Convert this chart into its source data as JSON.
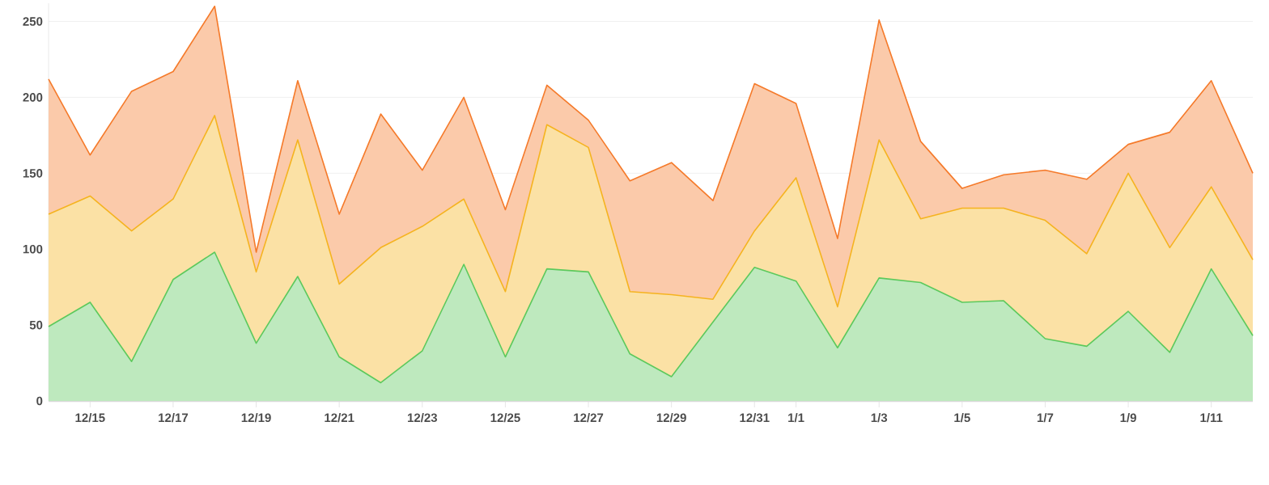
{
  "chart_data": {
    "type": "area",
    "stacked": true,
    "grid": "y",
    "categories": [
      null,
      "12/15",
      null,
      "12/17",
      null,
      "12/19",
      null,
      "12/21",
      null,
      "12/23",
      null,
      "12/25",
      null,
      "12/27",
      null,
      "12/29",
      null,
      "12/31",
      "1/1",
      null,
      "1/3",
      null,
      "1/5",
      null,
      "1/7",
      null,
      "1/9",
      null,
      "1/11",
      null
    ],
    "ylim": [
      0,
      262
    ],
    "yticks": [
      0,
      50,
      100,
      150,
      200,
      250
    ],
    "series": [
      {
        "color": "#5cc95c",
        "values": [
          49,
          65,
          26,
          80,
          98,
          38,
          82,
          29,
          12,
          33,
          90,
          29,
          87,
          85,
          31,
          16,
          52,
          88,
          79,
          35,
          81,
          78,
          65,
          66,
          41,
          36,
          59,
          32,
          87,
          43
        ]
      },
      {
        "color": "#f5b31f",
        "values": [
          74,
          70,
          86,
          53,
          90,
          47,
          90,
          48,
          89,
          82,
          43,
          43,
          95,
          82,
          41,
          54,
          15,
          24,
          68,
          27,
          91,
          42,
          62,
          61,
          78,
          61,
          91,
          69,
          54,
          50
        ]
      },
      {
        "color": "#f57a2a",
        "values": [
          89,
          27,
          92,
          84,
          72,
          13,
          39,
          46,
          88,
          37,
          67,
          54,
          26,
          18,
          73,
          87,
          65,
          97,
          49,
          45,
          79,
          51,
          13,
          22,
          33,
          49,
          19,
          76,
          70,
          57
        ]
      }
    ]
  }
}
